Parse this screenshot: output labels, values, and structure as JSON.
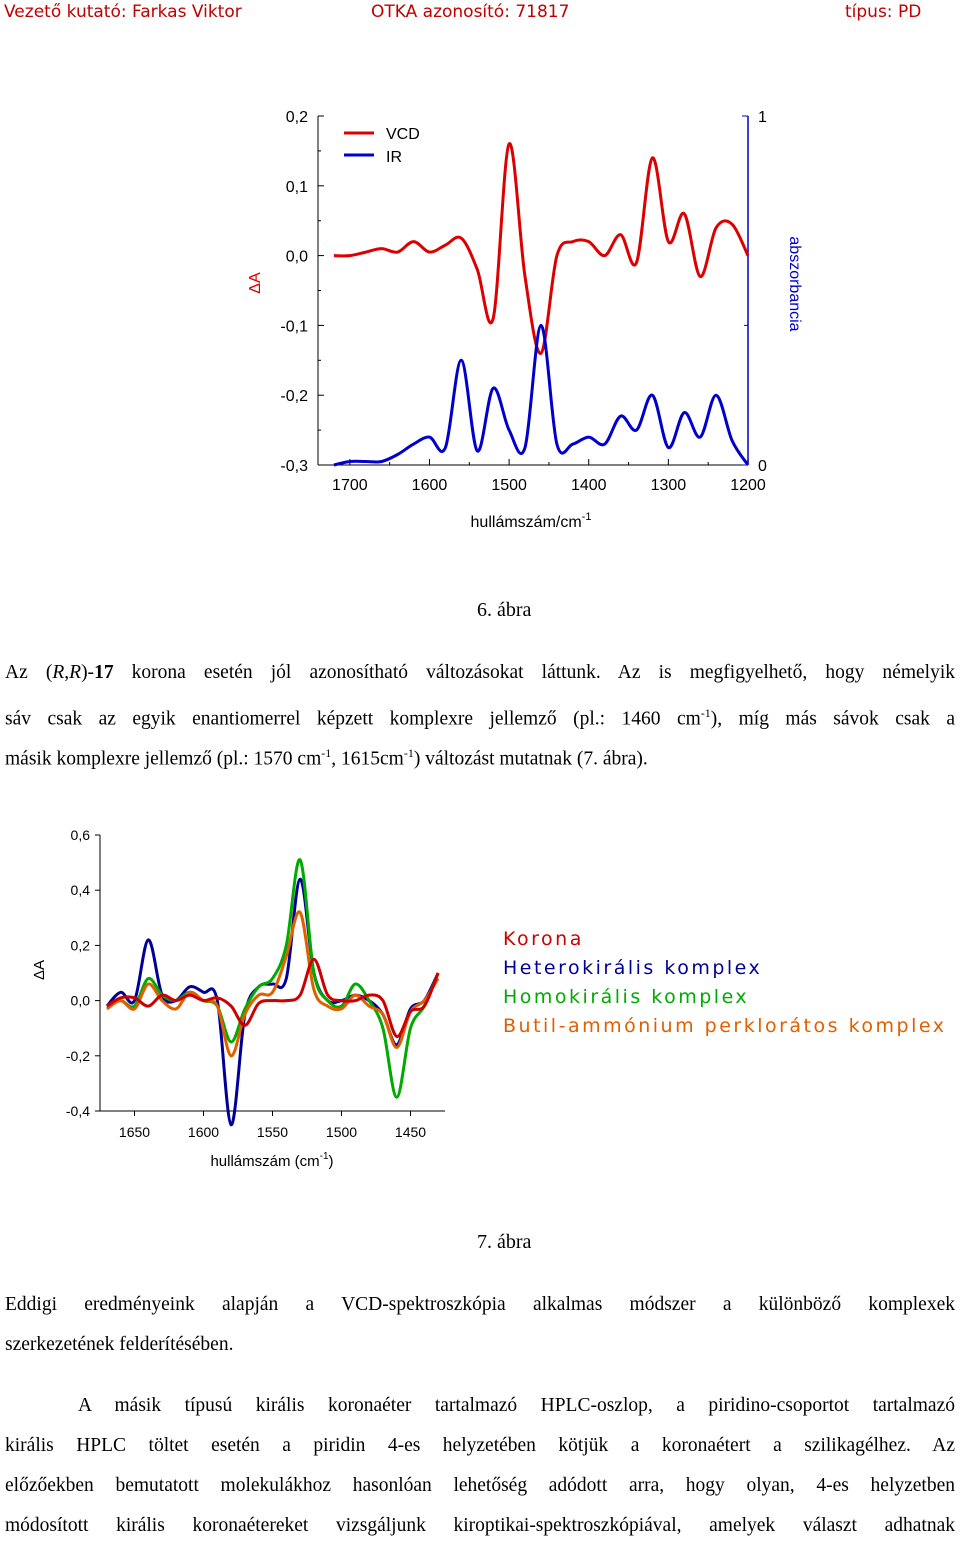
{
  "header": {
    "researcher": "Vezető kutató: Farkas Viktor",
    "otka": "OTKA azonosító: 71817",
    "type": "típus: PD"
  },
  "figure6": {
    "caption": "6.   ábra",
    "legend": [
      "VCD",
      "IR"
    ],
    "left_axis_label": "ΔA",
    "right_axis_label": "abszorbancia",
    "x_axis_label": "hullámszám/cm",
    "x_axis_label_sup": "-1",
    "colors": {
      "vcd": "#dd0000",
      "ir": "#0000cc",
      "right_axis": "#0000cc"
    }
  },
  "figure7": {
    "caption": "7.   ábra",
    "y_axis_label": "ΔA",
    "x_axis_label": "hullámszám (cm",
    "x_axis_label_sup": "-1",
    "x_axis_label_end": ")",
    "legend": [
      {
        "label": "Korona",
        "color": "#cc0000"
      },
      {
        "label": "Heterokirális komplex",
        "color": "#000099"
      },
      {
        "label": "Homokirális komplex",
        "color": "#00aa00"
      },
      {
        "label": "Butil-ammónium perklorátos komplex",
        "color": "#e06000"
      }
    ]
  },
  "paragraph1": {
    "l1_a": "Az (",
    "l1_r1": "R",
    "l1_b": ",",
    "l1_r2": "R",
    "l1_c": ")-",
    "l1_bold": "17",
    "l1_d": " korona esetén jól azonosítható változásokat láttunk. Az is megfigyelhető, hogy némelyik",
    "l2_a": "sáv csak az egyik enantiomerrel képzett komplexre jellemző (pl.: 1460 cm",
    "l2_sup": "-1",
    "l2_b": "), míg más sávok csak a",
    "l3_a": "másik komplexre jellemző (pl.: 1570 cm",
    "l3_sup1": "-1",
    "l3_b": ", 1615cm",
    "l3_sup2": "-1",
    "l3_c": ") változást mutatnak (7. ábra)."
  },
  "paragraph2": {
    "l1": "Eddigi eredményeink alapján a VCD-spektroszkópia alkalmas módszer a különböző komplexek",
    "l2": "szerkezetének felderítésében."
  },
  "paragraph3": {
    "l1": "A másik típusú királis koronaéter tartalmazó HPLC-oszlop, a piridino-csoportot tartalmazó",
    "l2": "királis HPLC töltet esetén a piridin 4-es helyzetében kötjük a koronaétert a szilikagélhez. Az",
    "l3": "előzőekben bemutatott molekulákhoz hasonlóan lehetőség adódott arra, hogy olyan, 4-es helyzetben",
    "l4": "módosított királis koronaétereket vizsgáljunk kiroptikai-spektroszkópiával, amelyek választ adhatnak"
  },
  "chart_data": [
    {
      "type": "line",
      "x": [
        1720,
        1700,
        1680,
        1660,
        1640,
        1620,
        1600,
        1580,
        1560,
        1540,
        1520,
        1500,
        1480,
        1460,
        1440,
        1420,
        1400,
        1380,
        1360,
        1340,
        1320,
        1300,
        1280,
        1260,
        1240,
        1220,
        1200
      ],
      "series": [
        {
          "name": "VCD",
          "axis": "left",
          "values": [
            0.0,
            0.0,
            0.005,
            0.01,
            0.005,
            0.02,
            0.005,
            0.015,
            0.025,
            -0.02,
            -0.09,
            0.16,
            -0.03,
            -0.14,
            0.0,
            0.02,
            0.02,
            0.0,
            0.03,
            -0.01,
            0.14,
            0.02,
            0.06,
            -0.03,
            0.04,
            0.045,
            0.0
          ]
        },
        {
          "name": "IR",
          "axis": "right",
          "values": [
            0.0,
            0.01,
            0.01,
            0.01,
            0.03,
            0.06,
            0.08,
            0.05,
            0.3,
            0.04,
            0.22,
            0.1,
            0.05,
            0.4,
            0.06,
            0.06,
            0.08,
            0.06,
            0.14,
            0.1,
            0.2,
            0.05,
            0.15,
            0.08,
            0.2,
            0.07,
            0.0
          ]
        }
      ],
      "xlabel": "hullámszám/cm-1",
      "ylabel": "ΔA",
      "y2label": "abszorbancia",
      "xlim": [
        1740,
        1200
      ],
      "ylim": [
        -0.3,
        0.2
      ],
      "y2lim": [
        0,
        1
      ],
      "x_ticks": [
        1700,
        1600,
        1500,
        1400,
        1300,
        1200
      ],
      "y_ticks": [
        "0,2",
        "0,1",
        "0,0",
        "-0,1",
        "-0,2",
        "-0,3"
      ],
      "y_tick_values": [
        0.2,
        0.1,
        0.0,
        -0.1,
        -0.2,
        -0.3
      ],
      "y2_ticks": [
        "1",
        "0"
      ],
      "y2_tick_values": [
        1,
        0
      ],
      "legend": "top-left"
    },
    {
      "type": "line",
      "x": [
        1670,
        1660,
        1650,
        1640,
        1630,
        1620,
        1610,
        1600,
        1590,
        1580,
        1570,
        1560,
        1550,
        1540,
        1530,
        1520,
        1510,
        1500,
        1490,
        1480,
        1470,
        1460,
        1450,
        1440,
        1430
      ],
      "series": [
        {
          "name": "Korona",
          "color": "#cc0000",
          "values": [
            -0.02,
            0.01,
            0.01,
            -0.02,
            0.02,
            0.0,
            0.02,
            0.0,
            0.01,
            -0.02,
            -0.09,
            -0.01,
            0.0,
            0.0,
            0.02,
            0.15,
            0.02,
            0.0,
            0.0,
            0.02,
            0.0,
            -0.13,
            -0.04,
            -0.02,
            0.1
          ]
        },
        {
          "name": "Heterokirális komplex",
          "color": "#000099",
          "values": [
            -0.02,
            0.03,
            0.0,
            0.22,
            0.02,
            0.0,
            0.05,
            0.03,
            0.0,
            -0.45,
            -0.05,
            0.05,
            0.06,
            0.08,
            0.44,
            0.1,
            0.0,
            0.0,
            0.02,
            0.0,
            -0.05,
            -0.16,
            -0.03,
            0.0,
            0.1
          ]
        },
        {
          "name": "Homokirális komplex",
          "color": "#00aa00",
          "values": [
            -0.02,
            0.0,
            -0.02,
            0.08,
            0.02,
            0.0,
            0.03,
            0.0,
            -0.02,
            -0.15,
            -0.03,
            0.05,
            0.08,
            0.2,
            0.51,
            0.1,
            0.0,
            -0.02,
            0.06,
            0.0,
            -0.1,
            -0.35,
            -0.1,
            -0.02,
            0.1
          ]
        },
        {
          "name": "Butil-ammónium perklorátos komplex",
          "color": "#e06000",
          "values": [
            -0.03,
            0.0,
            -0.03,
            0.06,
            0.0,
            -0.03,
            0.03,
            0.0,
            -0.02,
            -0.2,
            -0.05,
            0.02,
            0.03,
            0.16,
            0.32,
            0.04,
            -0.02,
            -0.03,
            0.02,
            -0.02,
            -0.05,
            -0.17,
            -0.04,
            0.0,
            0.08
          ]
        }
      ],
      "xlabel": "hullámszám (cm-1)",
      "ylabel": "ΔA",
      "xlim": [
        1675,
        1425
      ],
      "ylim": [
        -0.4,
        0.6
      ],
      "x_ticks": [
        1650,
        1600,
        1550,
        1500,
        1450
      ],
      "y_ticks": [
        "0,6",
        "0,4",
        "0,2",
        "0,0",
        "-0,2",
        "-0,4"
      ],
      "y_tick_values": [
        0.6,
        0.4,
        0.2,
        0.0,
        -0.2,
        -0.4
      ],
      "legend": "right"
    }
  ]
}
